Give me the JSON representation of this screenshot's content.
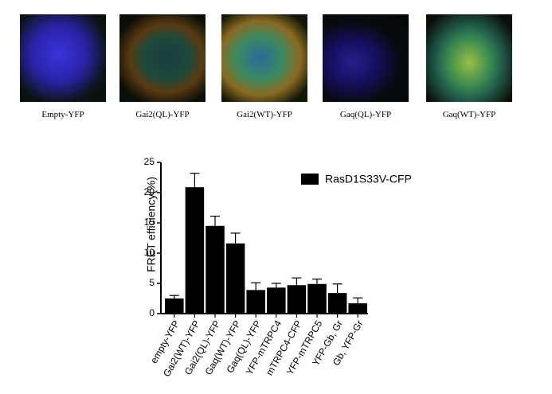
{
  "image_labels": [
    "Empty-YFP",
    "Gai2(QL)-YFP",
    "Gai2(WT)-YFP",
    "Gaq(QL)-YFP",
    "Gaq(WT)-YFP"
  ],
  "chart_data": {
    "type": "bar",
    "y_label": "FRET efficiency(%)",
    "categories": [
      "empty-YFP",
      "Gai2(WT)-YFP",
      "Gai2(QL)-YFP",
      "Gaq(WT)-YFP",
      "Gaq(QL)-YFP",
      "YFP-mTRPC4",
      "mTRPC4-CFP",
      "YFP-mTRPC5",
      "YFP-Gb, Gr",
      "Gb, YFP-Gr"
    ],
    "series": [
      {
        "name": "RasD1S33V-CFP",
        "color": "#000000",
        "values": [
          2.5,
          20.9,
          14.5,
          11.6,
          3.9,
          4.3,
          4.7,
          4.9,
          3.4,
          1.7
        ],
        "errors": [
          0.5,
          2.3,
          1.6,
          1.7,
          1.2,
          0.7,
          1.2,
          0.8,
          1.5,
          0.9
        ]
      }
    ],
    "ylim": [
      0,
      25
    ],
    "yticks": [
      0,
      5,
      10,
      15,
      20,
      25
    ],
    "legend": "upper right"
  }
}
